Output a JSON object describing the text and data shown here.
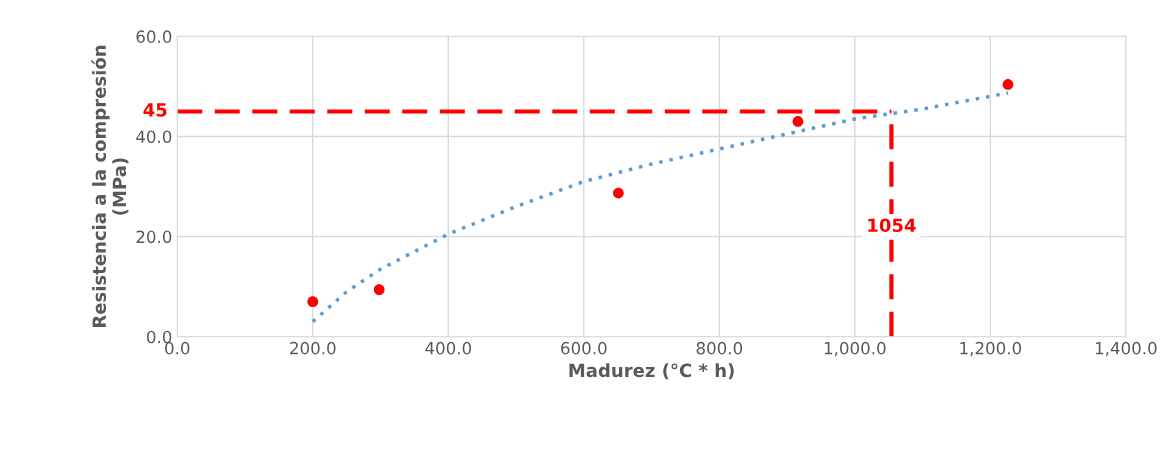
{
  "chart_data": {
    "type": "scatter",
    "xlabel": "Madurez (°C * h)",
    "ylabel": "Resistencia a la compresión\n(MPa)",
    "xlim": [
      0,
      1400
    ],
    "ylim": [
      0,
      60
    ],
    "xticks": [
      {
        "value": 0,
        "label": "0.0"
      },
      {
        "value": 200,
        "label": "200.0"
      },
      {
        "value": 400,
        "label": "400.0"
      },
      {
        "value": 600,
        "label": "600.0"
      },
      {
        "value": 800,
        "label": "800.0"
      },
      {
        "value": 1000,
        "label": "1,000.0"
      },
      {
        "value": 1200,
        "label": "1,200.0"
      },
      {
        "value": 1400,
        "label": "1,400.0"
      }
    ],
    "yticks": [
      {
        "value": 0,
        "label": "0.0"
      },
      {
        "value": 20,
        "label": "20.0"
      },
      {
        "value": 40,
        "label": "40.0"
      },
      {
        "value": 60,
        "label": "60.0"
      }
    ],
    "grid": true,
    "marker": "circle",
    "series": [
      {
        "color": "#ff0000",
        "x": [
          200,
          298,
          651,
          916,
          1226
        ],
        "values": [
          7.0,
          9.4,
          28.7,
          43.0,
          50.4
        ]
      },
      {
        "type": "line",
        "color": "#5b9bd5",
        "line_style": "dotted",
        "marker": "none",
        "x": [
          200,
          250,
          300,
          400,
          500,
          600,
          700,
          800,
          900,
          1000,
          1100,
          1226
        ],
        "values": [
          3.0,
          9.0,
          13.5,
          20.5,
          26.0,
          31.0,
          34.5,
          37.5,
          40.5,
          43.5,
          45.5,
          48.7
        ]
      }
    ],
    "ref_lines": [
      {
        "axis": "y",
        "value": 45,
        "label": "45",
        "color": "#ff0000",
        "line_style": "dashed"
      },
      {
        "axis": "x",
        "value": 1054,
        "label": "1054",
        "color": "#ff0000",
        "line_style": "dashed"
      }
    ]
  }
}
